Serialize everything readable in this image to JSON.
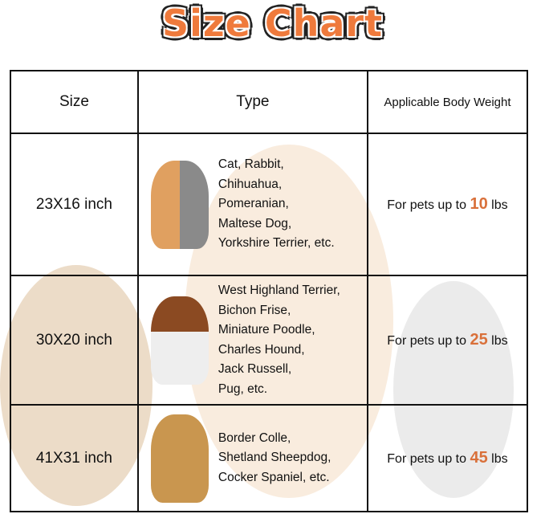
{
  "title": "Size Chart",
  "colors": {
    "accent": "#ef7a3c",
    "number": "#d9703a",
    "border": "#111111"
  },
  "headers": [
    "Size",
    "Type",
    "Applicable Body Weight"
  ],
  "rows": [
    {
      "size": "23X16 inch",
      "types": [
        "Cat, Rabbit,",
        "Chihuahua,",
        "Pomeranian,",
        "Maltese Dog,",
        "Yorkshire Terrier, etc."
      ],
      "weight_prefix": "For pets up to",
      "weight_value": "10",
      "weight_unit": "lbs",
      "image": "pomeranian-and-cat"
    },
    {
      "size": "30X20 inch",
      "types": [
        "West Highland Terrier,",
        "Bichon Frise,",
        "Miniature Poodle,",
        "Charles Hound,",
        "Jack Russell,",
        "Pug, etc."
      ],
      "weight_prefix": "For pets up to",
      "weight_value": "25",
      "weight_unit": "lbs",
      "image": "cavalier-spaniel"
    },
    {
      "size": "41X31 inch",
      "types": [
        "Border Colle,",
        "Shetland Sheepdog,",
        "Cocker Spaniel, etc."
      ],
      "weight_prefix": "For pets up to",
      "weight_value": "45",
      "weight_unit": "lbs",
      "image": "cocker-spaniel"
    }
  ]
}
